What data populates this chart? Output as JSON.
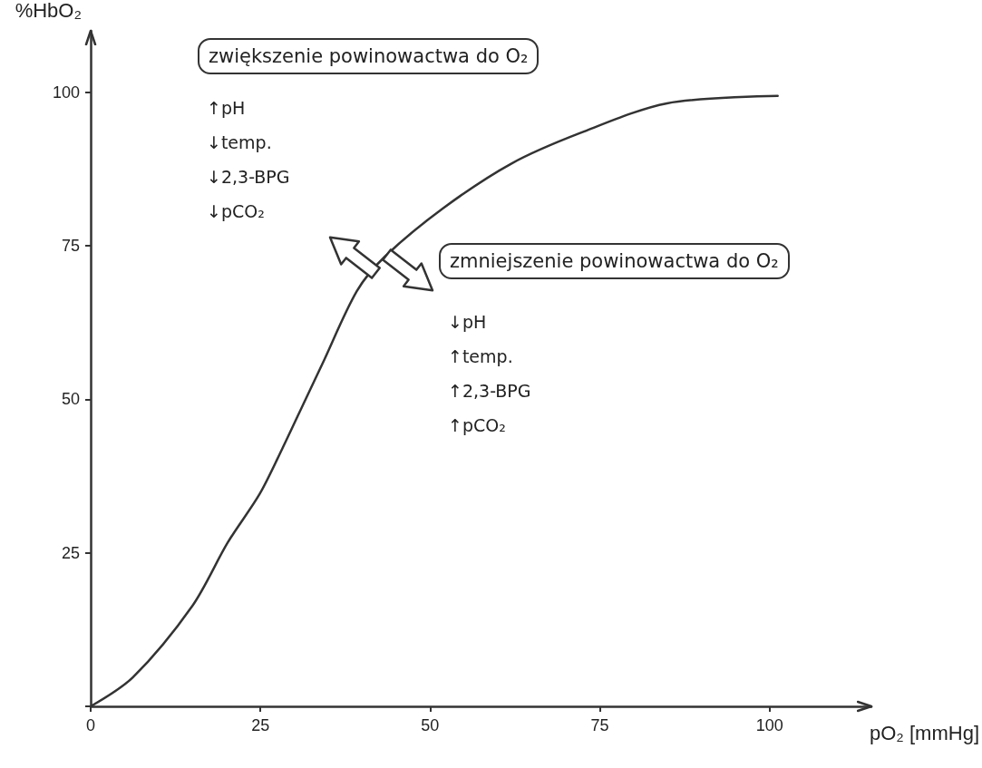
{
  "chart_data": {
    "type": "line",
    "xlabel": "pO₂ [mmHg]",
    "ylabel": "%HbO₂",
    "x": [
      0,
      6.2,
      15,
      20.2,
      24.9,
      28.2,
      31.7,
      34.1,
      39.2,
      43.3,
      51.9,
      62,
      72.2,
      84.9,
      101.2
    ],
    "values": [
      0,
      4.7,
      16.4,
      26.7,
      34.6,
      41.9,
      50.1,
      55.7,
      67.6,
      73.2,
      81.1,
      88.4,
      93.4,
      98.2,
      99.4
    ],
    "color": "#333333",
    "marker": "none",
    "line_style": "solid",
    "xlim": [
      0,
      115
    ],
    "ylim": [
      0,
      110
    ],
    "xticks": [
      0,
      25,
      50,
      75,
      100
    ],
    "yticks": [
      {
        "value": 0,
        "label": null
      },
      25,
      50,
      75,
      100
    ],
    "annotations": [
      "zwiększenie powinowactwa do O₂",
      "↑pH",
      "↓temp.",
      "↓2,3-BPG",
      "↓pCO₂",
      "zmniejszenie powinowactwa do O₂",
      "↓pH",
      "↑temp.",
      "↑2,3-BPG",
      "↑pCO₂"
    ]
  }
}
